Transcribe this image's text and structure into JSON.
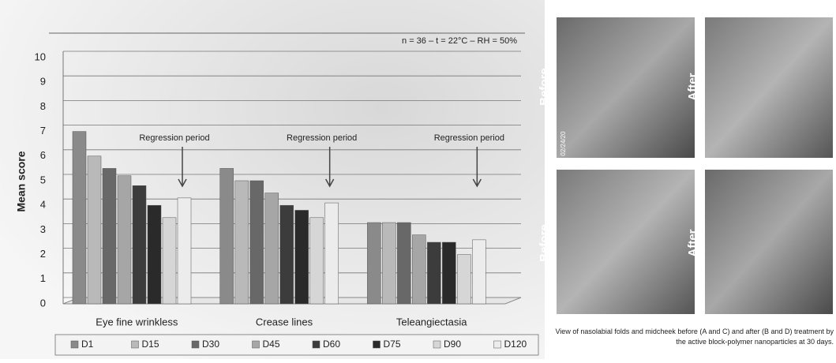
{
  "chart_data": {
    "type": "bar",
    "annotation_top": "n = 36 – t = 22°C – RH = 50%",
    "annotations": [
      "Regression period",
      "Regression period",
      "Regression period"
    ],
    "y_label": "Mean score",
    "categories": [
      "Eye fine wrinkless",
      "Crease lines",
      "Teleangiectasia"
    ],
    "series": [
      {
        "name": "D1",
        "color": "#8a8a8a",
        "values": [
          7.0,
          5.5,
          3.3
        ]
      },
      {
        "name": "D15",
        "color": "#b9b9b9",
        "values": [
          6.0,
          5.0,
          3.3
        ]
      },
      {
        "name": "D30",
        "color": "#686868",
        "values": [
          5.5,
          5.0,
          3.3
        ]
      },
      {
        "name": "D45",
        "color": "#a6a6a6",
        "values": [
          5.2,
          4.5,
          2.8
        ]
      },
      {
        "name": "D60",
        "color": "#3c3c3c",
        "values": [
          4.8,
          4.0,
          2.5
        ]
      },
      {
        "name": "D75",
        "color": "#2a2a2a",
        "values": [
          4.0,
          3.8,
          2.5
        ]
      },
      {
        "name": "D90",
        "color": "#d6d6d6",
        "values": [
          3.5,
          3.5,
          2.0
        ]
      },
      {
        "name": "D120",
        "color": "#ececec",
        "values": [
          4.3,
          4.1,
          2.6
        ]
      }
    ],
    "ylim": [
      0,
      10
    ],
    "yticks": [
      0,
      1,
      2,
      3,
      4,
      5,
      6,
      7,
      8,
      9,
      10
    ],
    "grid": true
  },
  "photos": {
    "labels": [
      "Before",
      "After",
      "Before",
      "After"
    ],
    "stamp": "02/24/20",
    "caption": "View of nasolabial folds and midcheek before (A and C) and after (B and D) treatment by the active block-polymer nanoparticles at 30 days."
  }
}
